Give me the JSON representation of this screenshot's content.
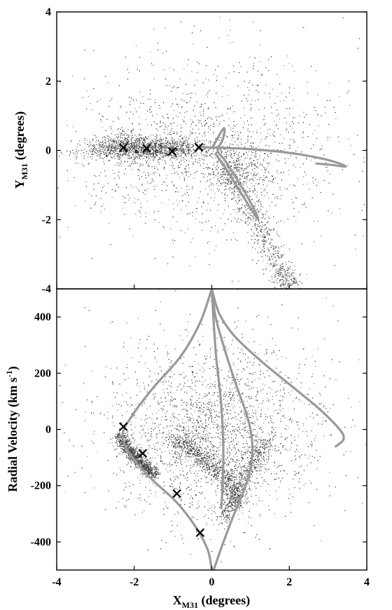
{
  "chart_data": [
    {
      "type": "scatter",
      "panel": "top",
      "title": "",
      "xlabel": "",
      "ylabel": {
        "main": "Y",
        "sub": "M31",
        "rest": " (degrees)"
      },
      "xlim": [
        -4,
        4
      ],
      "ylim": [
        -4,
        4
      ],
      "yticks": [
        -4,
        -2,
        0,
        2,
        4
      ],
      "ytick_labels": [
        "-4",
        "-2",
        "0",
        "2",
        "4"
      ],
      "grid": false,
      "colors": {
        "points": "#2a2a2a",
        "curve": "#999999",
        "markers": "#000000"
      },
      "markers": [
        {
          "x": -2.28,
          "y": 0.08
        },
        {
          "x": -1.68,
          "y": 0.06
        },
        {
          "x": -1.02,
          "y": -0.03
        },
        {
          "x": -0.33,
          "y": 0.09
        }
      ],
      "curves": [
        [
          [
            0.02,
            0.08
          ],
          [
            0.25,
            0.55
          ],
          [
            0.33,
            0.62
          ],
          [
            0.28,
            0.3
          ],
          [
            0.15,
            0.0
          ],
          [
            0.35,
            -0.3
          ],
          [
            0.6,
            -0.75
          ],
          [
            0.85,
            -1.2
          ],
          [
            1.05,
            -1.6
          ],
          [
            1.2,
            -1.95
          ]
        ],
        [
          [
            0.1,
            -0.1
          ],
          [
            0.35,
            -0.5
          ],
          [
            0.6,
            -0.95
          ],
          [
            0.85,
            -1.4
          ],
          [
            1.1,
            -1.85
          ],
          [
            1.2,
            -2.0
          ]
        ],
        [
          [
            0.0,
            0.08
          ],
          [
            0.8,
            0.05
          ],
          [
            1.6,
            -0.02
          ],
          [
            2.3,
            -0.12
          ],
          [
            2.9,
            -0.25
          ],
          [
            3.3,
            -0.38
          ],
          [
            3.45,
            -0.47
          ],
          [
            3.1,
            -0.42
          ],
          [
            2.7,
            -0.38
          ]
        ],
        [
          [
            -0.3,
            0.1
          ],
          [
            -0.1,
            0.09
          ],
          [
            0.0,
            0.08
          ]
        ]
      ],
      "point_clouds": [
        {
          "cx": -1.6,
          "cy": 0.05,
          "sx": 0.8,
          "sy": 0.16,
          "n": 1300
        },
        {
          "cx": -2.2,
          "cy": 0.15,
          "sx": 0.45,
          "sy": 0.25,
          "n": 350
        },
        {
          "cx": 0.7,
          "cy": -0.6,
          "sx": 0.4,
          "sy": 0.35,
          "n": 300
        },
        {
          "band": [
            [
              0.3,
              -0.3
            ],
            [
              0.9,
              -1.5
            ],
            [
              1.4,
              -2.6
            ],
            [
              1.8,
              -3.5
            ],
            [
              2.1,
              -4.0
            ]
          ],
          "width": 0.35,
          "n": 750
        },
        {
          "cx": -0.2,
          "cy": 0.0,
          "sx": 1.7,
          "sy": 1.05,
          "n": 1000
        },
        {
          "cx": 0.2,
          "cy": 0.3,
          "sx": 2.0,
          "sy": 1.9,
          "n": 450
        }
      ]
    },
    {
      "type": "scatter",
      "panel": "bottom",
      "title": "",
      "xlabel": {
        "main": "X",
        "sub": "M31",
        "rest": " (degrees)"
      },
      "ylabel": {
        "main": "Radial Velocity (km s",
        "sup": "-1",
        "rest": ")"
      },
      "xlim": [
        -4,
        4
      ],
      "ylim": [
        -500,
        500
      ],
      "xticks": [
        -4,
        -2,
        0,
        2,
        4
      ],
      "xtick_labels": [
        "-4",
        "-2",
        "0",
        "2",
        "4"
      ],
      "yticks": [
        -400,
        -200,
        0,
        200,
        400
      ],
      "ytick_labels": [
        "-400",
        "-200",
        "0",
        "200",
        "400"
      ],
      "grid": false,
      "colors": {
        "points": "#2a2a2a",
        "curve": "#999999",
        "markers": "#000000"
      },
      "markers": [
        {
          "x": -2.28,
          "y": 10
        },
        {
          "x": -1.78,
          "y": -85
        },
        {
          "x": -0.9,
          "y": -228
        },
        {
          "x": -0.3,
          "y": -367
        }
      ],
      "curves": [
        [
          [
            0.0,
            500
          ],
          [
            -0.3,
            380
          ],
          [
            -0.8,
            260
          ],
          [
            -1.5,
            150
          ],
          [
            -2.05,
            50
          ],
          [
            -2.3,
            -20
          ],
          [
            -2.1,
            -90
          ],
          [
            -1.6,
            -170
          ],
          [
            -0.9,
            -260
          ],
          [
            -0.4,
            -350
          ],
          [
            -0.1,
            -430
          ],
          [
            0.0,
            -500
          ]
        ],
        [
          [
            0.0,
            500
          ],
          [
            0.05,
            380
          ],
          [
            0.12,
            250
          ],
          [
            0.25,
            80
          ],
          [
            0.3,
            -100
          ],
          [
            0.25,
            -280
          ]
        ],
        [
          [
            0.0,
            500
          ],
          [
            0.1,
            400
          ],
          [
            0.3,
            300
          ],
          [
            0.6,
            170
          ],
          [
            0.95,
            30
          ],
          [
            1.05,
            -80
          ],
          [
            0.9,
            -190
          ],
          [
            0.55,
            -310
          ],
          [
            0.25,
            -420
          ],
          [
            0.05,
            -500
          ]
        ],
        [
          [
            0.0,
            500
          ],
          [
            0.2,
            410
          ],
          [
            0.6,
            330
          ],
          [
            1.3,
            240
          ],
          [
            2.1,
            150
          ],
          [
            2.8,
            70
          ],
          [
            3.3,
            0
          ],
          [
            3.4,
            -35
          ],
          [
            3.2,
            -60
          ]
        ]
      ],
      "point_clouds": [
        {
          "band": [
            [
              -2.4,
              -20
            ],
            [
              -2.1,
              -80
            ],
            [
              -1.8,
              -120
            ],
            [
              -1.5,
              -160
            ]
          ],
          "width": 0.18,
          "n": 1000
        },
        {
          "band": [
            [
              -1.0,
              -30
            ],
            [
              -0.5,
              -80
            ],
            [
              0.1,
              -130
            ],
            [
              0.5,
              -200
            ],
            [
              0.7,
              -260
            ]
          ],
          "width": 0.28,
          "n": 800
        },
        {
          "band": [
            [
              1.4,
              -40
            ],
            [
              1.0,
              -130
            ],
            [
              0.6,
              -230
            ],
            [
              0.3,
              -320
            ]
          ],
          "width": 0.25,
          "n": 500
        },
        {
          "cx": 0.0,
          "cy": -20,
          "sx": 1.25,
          "sy": 140,
          "n": 1800
        },
        {
          "cx": 0.3,
          "cy": 40,
          "sx": 1.7,
          "sy": 180,
          "n": 650
        }
      ]
    }
  ]
}
